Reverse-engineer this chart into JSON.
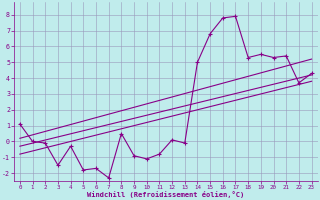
{
  "xlabel": "Windchill (Refroidissement éolien,°C)",
  "bg_color": "#c0ecec",
  "grid_color": "#9999bb",
  "line_color": "#880088",
  "xlim": [
    -0.5,
    23.5
  ],
  "ylim": [
    -2.5,
    8.8
  ],
  "xticks": [
    0,
    1,
    2,
    3,
    4,
    5,
    6,
    7,
    8,
    9,
    10,
    11,
    12,
    13,
    14,
    15,
    16,
    17,
    18,
    19,
    20,
    21,
    22,
    23
  ],
  "yticks": [
    -2,
    -1,
    0,
    1,
    2,
    3,
    4,
    5,
    6,
    7,
    8
  ],
  "data_x": [
    0,
    1,
    2,
    3,
    4,
    5,
    6,
    7,
    8,
    9,
    10,
    11,
    12,
    13,
    14,
    15,
    16,
    17,
    18,
    19,
    20,
    21,
    22,
    23
  ],
  "data_y": [
    1.1,
    0.0,
    -0.1,
    -1.5,
    -0.3,
    -1.8,
    -1.7,
    -2.3,
    0.5,
    -0.9,
    -1.1,
    -0.8,
    0.1,
    -0.1,
    5.0,
    6.8,
    7.8,
    7.9,
    5.3,
    5.5,
    5.3,
    5.4,
    3.7,
    4.3
  ],
  "trend1_x": [
    0,
    23
  ],
  "trend1_y": [
    -0.3,
    4.2
  ],
  "trend2_x": [
    0,
    23
  ],
  "trend2_y": [
    0.2,
    5.2
  ],
  "trend3_x": [
    0,
    23
  ],
  "trend3_y": [
    -0.8,
    3.8
  ]
}
